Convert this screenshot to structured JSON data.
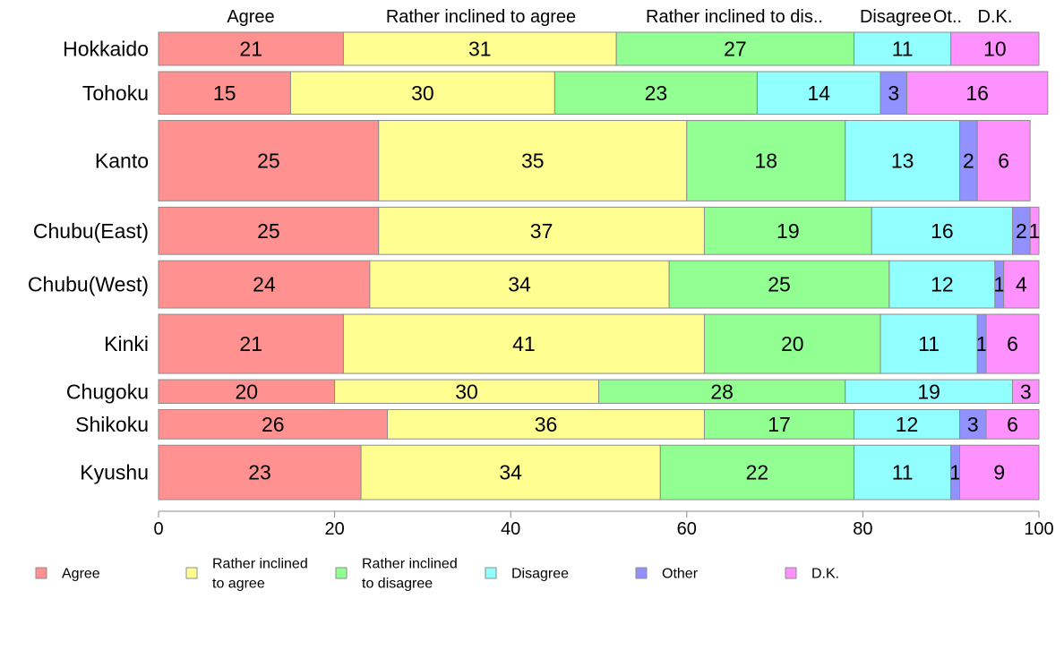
{
  "chart_data": {
    "type": "bar",
    "orientation": "horizontal",
    "stacked": true,
    "variable_width": true,
    "categories": [
      "Hokkaido",
      "Tohoku",
      "Kanto",
      "Chubu(East)",
      "Chubu(West)",
      "Kinki",
      "Chugoku",
      "Shikoku",
      "Kyushu"
    ],
    "relative_size": [
      0.7,
      0.9,
      1.7,
      1.0,
      1.0,
      1.25,
      0.5,
      0.62,
      1.15
    ],
    "series": [
      {
        "name": "Agree",
        "color": "#ff9191",
        "values": [
          21,
          15,
          25,
          25,
          24,
          21,
          20,
          26,
          23
        ],
        "labels": [
          "21",
          "15",
          "25",
          "25",
          "24",
          "21",
          "20",
          "26",
          "23"
        ]
      },
      {
        "name": "Rather inclined to agree",
        "color": "#ffff91",
        "values": [
          31,
          30,
          35,
          37,
          34,
          41,
          30,
          36,
          34
        ],
        "labels": [
          "31",
          "30",
          "35",
          "37",
          "34",
          "41",
          "30",
          "36",
          "34"
        ]
      },
      {
        "name": "Rather inclined to disagree",
        "color": "#91ff91",
        "values": [
          27,
          23,
          18,
          19,
          25,
          20,
          28,
          17,
          22
        ],
        "labels": [
          "27",
          "23",
          "18",
          "19",
          "25",
          "20",
          "28",
          "17",
          "22"
        ]
      },
      {
        "name": "Disagree",
        "color": "#91ffff",
        "values": [
          11,
          14,
          13,
          16,
          12,
          11,
          19,
          12,
          11
        ],
        "labels": [
          "11",
          "14",
          "13",
          "16",
          "12",
          "11",
          "19",
          "12",
          "11"
        ]
      },
      {
        "name": "Other",
        "color": "#9191ff",
        "values": [
          0,
          3,
          2,
          2,
          1,
          1,
          0,
          3,
          1
        ],
        "labels": [
          "",
          "3",
          "2",
          "2",
          "1",
          "1",
          "",
          "3",
          "1"
        ]
      },
      {
        "name": "D.K.",
        "color": "#ff91ff",
        "values": [
          10,
          16,
          6,
          1,
          4,
          6,
          3,
          6,
          9
        ],
        "labels": [
          "10",
          "16",
          "6",
          "1",
          "4",
          "6",
          "3",
          "6",
          "9"
        ]
      }
    ],
    "top_labels": [
      "Agree",
      "Rather inclined to agree",
      "Rather inclined to dis..",
      "Disagree",
      "Ot..",
      "D.K."
    ],
    "xlim": [
      0,
      100
    ],
    "xticks": [
      0,
      20,
      40,
      60,
      80,
      100
    ],
    "xtick_labels": [
      "0",
      "20",
      "40",
      "60",
      "80",
      "100"
    ],
    "legend": [
      {
        "lines": [
          "Agree"
        ],
        "color": "#ff9191"
      },
      {
        "lines": [
          "Rather inclined",
          "to agree"
        ],
        "color": "#ffff91"
      },
      {
        "lines": [
          "Rather inclined",
          "to disagree"
        ],
        "color": "#91ff91"
      },
      {
        "lines": [
          "Disagree"
        ],
        "color": "#91ffff"
      },
      {
        "lines": [
          "Other"
        ],
        "color": "#9191ff"
      },
      {
        "lines": [
          "D.K."
        ],
        "color": "#ff91ff"
      }
    ],
    "legend_position": "bottom",
    "grid": false
  }
}
